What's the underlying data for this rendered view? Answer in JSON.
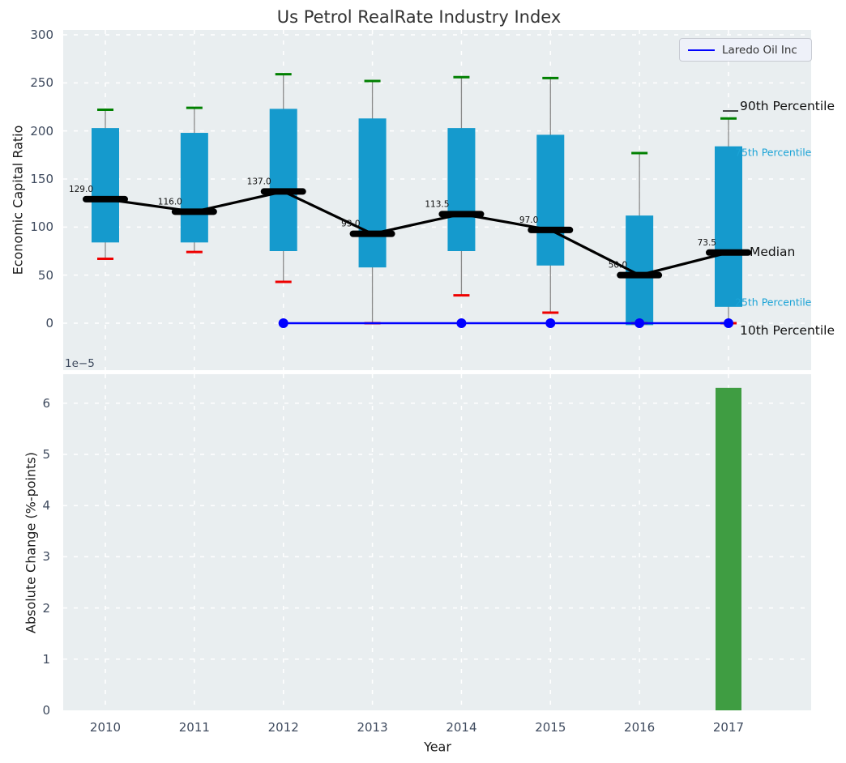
{
  "title": "Us Petrol RealRate Industry Index",
  "legend": {
    "label": "Laredo Oil Inc"
  },
  "annotations": {
    "p90_label": "90th Percentile",
    "p75_label": "75th Percentile",
    "median_label": "Median",
    "p25_label": "25th Percentile",
    "p10_label": "10th Percentile"
  },
  "top_chart": {
    "ylabel": "Economic Capital Ratio",
    "yticks": [
      0,
      50,
      100,
      150,
      200,
      250,
      300
    ]
  },
  "bottom_chart": {
    "ylabel": "Absolute Change (%-points)",
    "xlabel": "Year",
    "offset_text": "1e−5",
    "yticks": [
      0,
      1,
      2,
      3,
      4,
      5,
      6
    ]
  },
  "colors": {
    "box": "#159acd",
    "cap_high": "#008000",
    "cap_low": "#ee0000",
    "median": "#000000",
    "company_line": "#0000ff",
    "bar": "#3f9d42",
    "plot_bg": "#e9eef0",
    "grid": "#ffffff",
    "tick_text": "#3e4a5e",
    "cyan_label": "#1ba3d6",
    "whisker": "#8a8a8a"
  },
  "chart_data": [
    {
      "type": "boxplot",
      "title": "Us Petrol RealRate Industry Index",
      "ylabel": "Economic Capital Ratio",
      "categories": [
        2010,
        2011,
        2012,
        2013,
        2014,
        2015,
        2016,
        2017
      ],
      "ylim": [
        -49,
        305
      ],
      "yticks": [
        0,
        50,
        100,
        150,
        200,
        250,
        300
      ],
      "grid": true,
      "legend_position": "upper right",
      "series": {
        "median": [
          129.0,
          116.0,
          137.0,
          93.0,
          113.5,
          97.0,
          50.0,
          73.5
        ],
        "q1": [
          84,
          84,
          75,
          58,
          75,
          60,
          -2,
          17
        ],
        "q3": [
          203,
          198,
          223,
          213,
          203,
          196,
          112,
          184
        ],
        "p90": [
          222,
          224,
          259,
          252,
          256,
          255,
          177,
          213
        ],
        "p10": [
          67,
          74,
          43,
          0,
          29,
          11,
          0,
          0
        ]
      },
      "median_labels": [
        "129.0",
        "116.0",
        "137.0",
        "93.0",
        "113.5",
        "97.0",
        "50.0",
        "73.5"
      ],
      "company_series": {
        "name": "Laredo Oil Inc",
        "x": [
          2012,
          2013,
          2014,
          2015,
          2016,
          2017
        ],
        "y": [
          0,
          0,
          0,
          0,
          0,
          0
        ],
        "marker_x": [
          2012,
          2014,
          2015,
          2016,
          2017
        ]
      }
    },
    {
      "type": "bar",
      "ylabel": "Absolute Change (%-points)",
      "xlabel": "Year",
      "categories": [
        2010,
        2011,
        2012,
        2013,
        2014,
        2015,
        2016,
        2017
      ],
      "values_e5": [
        null,
        null,
        null,
        null,
        null,
        null,
        null,
        6.3
      ],
      "unit_multiplier": "1e-5",
      "ylim_e5": [
        0,
        6.57
      ],
      "yticks": [
        0,
        1,
        2,
        3,
        4,
        5,
        6
      ],
      "grid": true
    }
  ]
}
